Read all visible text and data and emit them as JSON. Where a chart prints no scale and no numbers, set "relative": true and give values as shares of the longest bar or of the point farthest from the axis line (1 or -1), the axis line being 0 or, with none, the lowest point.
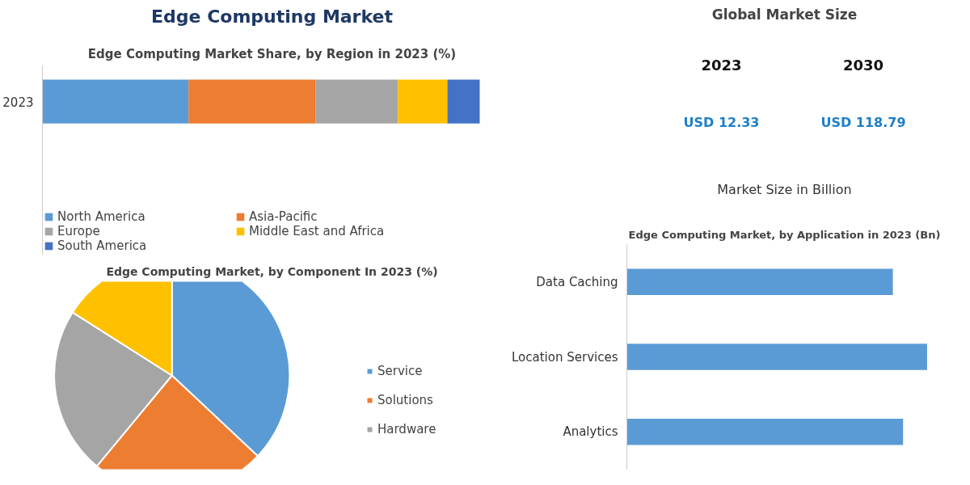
{
  "chart_data": [
    {
      "type": "other",
      "title": "Edge Computing Market"
    },
    {
      "type": "bar",
      "title": "Edge Computing Market Share, by Region in 2023 (%)",
      "orientation": "horizontal",
      "stacked": true,
      "relative": true,
      "categories": [
        "2023"
      ],
      "legend": "bottom",
      "grid": false,
      "series": [
        {
          "name": "North America",
          "color": "#5b9bd5",
          "values": [
            0.334
          ]
        },
        {
          "name": "Asia-Pacific",
          "color": "#ed7d31",
          "values": [
            0.291
          ]
        },
        {
          "name": "Europe",
          "color": "#a5a5a5",
          "values": [
            0.188
          ]
        },
        {
          "name": "Middle East and Africa",
          "color": "#ffc000",
          "values": [
            0.113
          ]
        },
        {
          "name": "South America",
          "color": "#4472c4",
          "values": [
            0.074
          ]
        }
      ]
    },
    {
      "type": "pie",
      "title": "Edge Computing Market, by Component In 2023 (%)",
      "categories": [
        "Service",
        "Solutions",
        "Hardware",
        null
      ],
      "values": [
        37,
        24,
        23,
        16
      ],
      "colors": [
        "#5b9bd5",
        "#ed7d31",
        "#a5a5a5",
        "#ffc000"
      ],
      "legend": "right"
    },
    {
      "type": "other",
      "title": "Global Market Size",
      "annotations": [
        "2023",
        "2030",
        "USD 12.33",
        "USD 118.79",
        "Market Size in Billion"
      ]
    },
    {
      "type": "bar",
      "title": "Edge Computing Market, by Application in 2023 (Bn)",
      "orientation": "horizontal",
      "relative": true,
      "categories": [
        "Data Caching",
        "Location Services",
        "Analytics"
      ],
      "values": [
        0.886,
        1,
        0.92
      ],
      "color": "#5b9bd5",
      "grid": false
    }
  ]
}
